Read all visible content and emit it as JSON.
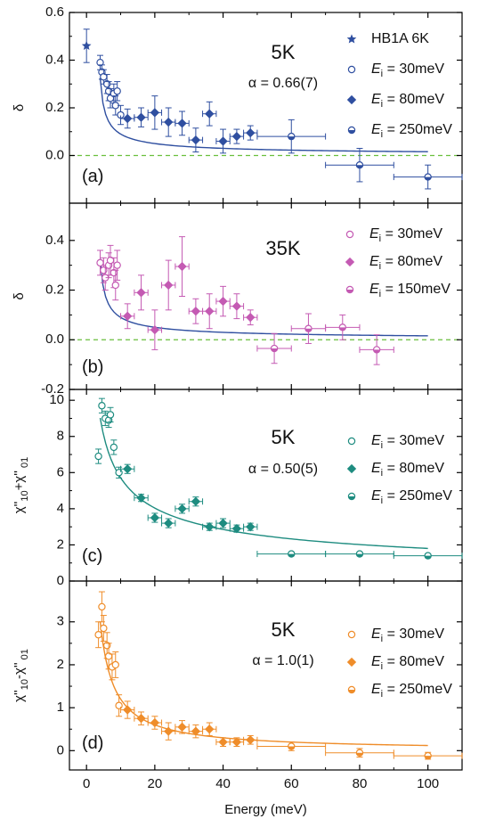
{
  "xaxis": {
    "label": "Energy (meV)",
    "range": [
      -5,
      110
    ],
    "ticks": [
      0,
      20,
      40,
      60,
      80,
      100
    ],
    "tick_labels": [
      "0",
      "20",
      "40",
      "60",
      "80",
      "100"
    ]
  },
  "chart_data": [
    {
      "type": "scatter",
      "panel_label": "(a)",
      "temperature_label": "5K",
      "fit_label": "α = 0.66(7)",
      "ylabel": "δ",
      "ylim": [
        -0.2,
        0.6
      ],
      "yticks": [
        0.0,
        0.2,
        0.4,
        0.6
      ],
      "ytick_labels": [
        "0.0",
        "0.2",
        "0.4",
        "0.6"
      ],
      "colors": {
        "primary": "#2f4fa0",
        "fit": "#2f4fa0",
        "baseline": "#6abf3c"
      },
      "legend": [
        "HB1A 6K",
        "E_i = 30meV",
        "E_i = 80meV",
        "E_i = 250meV"
      ],
      "baseline": 0,
      "fit": {
        "A": 0.325,
        "alpha": 0.66,
        "shift": 3,
        "x_start": 4,
        "x_end": 100
      },
      "series": [
        {
          "name": "HB1A 6K",
          "marker": "star",
          "points": [
            {
              "x": 0,
              "y": 0.46,
              "yerr": 0.07,
              "xerr": 0
            }
          ]
        },
        {
          "name": "E_i = 30meV",
          "marker": "open-circle",
          "points": [
            {
              "x": 4,
              "y": 0.39,
              "yerr": 0.03,
              "xerr": 0.5
            },
            {
              "x": 4.5,
              "y": 0.35,
              "yerr": 0.03,
              "xerr": 0.5
            },
            {
              "x": 5,
              "y": 0.33,
              "yerr": 0.03,
              "xerr": 0.5
            },
            {
              "x": 6,
              "y": 0.3,
              "yerr": 0.04,
              "xerr": 0.5
            },
            {
              "x": 6.5,
              "y": 0.27,
              "yerr": 0.04,
              "xerr": 0.5
            },
            {
              "x": 7,
              "y": 0.24,
              "yerr": 0.04,
              "xerr": 0.5
            },
            {
              "x": 8,
              "y": 0.26,
              "yerr": 0.04,
              "xerr": 0.5
            },
            {
              "x": 8.5,
              "y": 0.21,
              "yerr": 0.04,
              "xerr": 0.5
            },
            {
              "x": 9,
              "y": 0.27,
              "yerr": 0.04,
              "xerr": 0.5
            },
            {
              "x": 10,
              "y": 0.17,
              "yerr": 0.04,
              "xerr": 0.5
            }
          ]
        },
        {
          "name": "E_i = 80meV",
          "marker": "diamond",
          "points": [
            {
              "x": 12,
              "y": 0.155,
              "yerr": 0.04,
              "xerr": 2
            },
            {
              "x": 16,
              "y": 0.16,
              "yerr": 0.04,
              "xerr": 2
            },
            {
              "x": 20,
              "y": 0.18,
              "yerr": 0.07,
              "xerr": 2
            },
            {
              "x": 24,
              "y": 0.14,
              "yerr": 0.06,
              "xerr": 2
            },
            {
              "x": 28,
              "y": 0.135,
              "yerr": 0.05,
              "xerr": 2
            },
            {
              "x": 32,
              "y": 0.065,
              "yerr": 0.05,
              "xerr": 2
            },
            {
              "x": 36,
              "y": 0.175,
              "yerr": 0.05,
              "xerr": 2
            },
            {
              "x": 40,
              "y": 0.06,
              "yerr": 0.05,
              "xerr": 2
            },
            {
              "x": 44,
              "y": 0.08,
              "yerr": 0.03,
              "xerr": 2
            },
            {
              "x": 48,
              "y": 0.095,
              "yerr": 0.03,
              "xerr": 2
            }
          ]
        },
        {
          "name": "E_i = 250meV",
          "marker": "half-circle",
          "points": [
            {
              "x": 60,
              "y": 0.08,
              "yerr": 0.07,
              "xerr": 10
            },
            {
              "x": 80,
              "y": -0.04,
              "yerr": 0.07,
              "xerr": 10
            },
            {
              "x": 100,
              "y": -0.09,
              "yerr": 0.05,
              "xerr": 10
            }
          ]
        }
      ]
    },
    {
      "type": "scatter",
      "panel_label": "(b)",
      "temperature_label": "35K",
      "fit_label": "",
      "ylabel": "δ",
      "ylim": [
        -0.2,
        0.55
      ],
      "yticks": [
        -0.2,
        0.0,
        0.2,
        0.4
      ],
      "ytick_labels": [
        "-0.2",
        "0.0",
        "0.2",
        "0.4"
      ],
      "colors": {
        "primary": "#c45ab3",
        "fit": "#2f4fa0",
        "baseline": "#6abf3c"
      },
      "legend": [
        "E_i = 30meV",
        "E_i = 80meV",
        "E_i = 150meV"
      ],
      "baseline": 0,
      "fit": {
        "A": 0.325,
        "alpha": 0.66,
        "shift": 3,
        "x_start": 4,
        "x_end": 100
      },
      "series": [
        {
          "name": "E_i = 30meV",
          "marker": "open-circle",
          "points": [
            {
              "x": 4,
              "y": 0.31,
              "yerr": 0.05,
              "xerr": 0.5
            },
            {
              "x": 5,
              "y": 0.28,
              "yerr": 0.05,
              "xerr": 0.5
            },
            {
              "x": 5.5,
              "y": 0.25,
              "yerr": 0.05,
              "xerr": 0.5
            },
            {
              "x": 6.5,
              "y": 0.3,
              "yerr": 0.05,
              "xerr": 0.5
            },
            {
              "x": 7,
              "y": 0.32,
              "yerr": 0.06,
              "xerr": 0.5
            },
            {
              "x": 8,
              "y": 0.27,
              "yerr": 0.06,
              "xerr": 0.5
            },
            {
              "x": 8.5,
              "y": 0.22,
              "yerr": 0.06,
              "xerr": 0.5
            },
            {
              "x": 9,
              "y": 0.3,
              "yerr": 0.06,
              "xerr": 0.5
            }
          ]
        },
        {
          "name": "E_i = 80meV",
          "marker": "diamond",
          "points": [
            {
              "x": 12,
              "y": 0.095,
              "yerr": 0.05,
              "xerr": 2
            },
            {
              "x": 16,
              "y": 0.19,
              "yerr": 0.07,
              "xerr": 2
            },
            {
              "x": 20,
              "y": 0.04,
              "yerr": 0.08,
              "xerr": 2
            },
            {
              "x": 24,
              "y": 0.22,
              "yerr": 0.1,
              "xerr": 2
            },
            {
              "x": 28,
              "y": 0.295,
              "yerr": 0.12,
              "xerr": 2
            },
            {
              "x": 32,
              "y": 0.115,
              "yerr": 0.05,
              "xerr": 2
            },
            {
              "x": 36,
              "y": 0.115,
              "yerr": 0.07,
              "xerr": 2
            },
            {
              "x": 40,
              "y": 0.155,
              "yerr": 0.06,
              "xerr": 2
            },
            {
              "x": 44,
              "y": 0.135,
              "yerr": 0.05,
              "xerr": 2
            },
            {
              "x": 48,
              "y": 0.09,
              "yerr": 0.03,
              "xerr": 2
            }
          ]
        },
        {
          "name": "E_i = 150meV",
          "marker": "half-circle",
          "points": [
            {
              "x": 55,
              "y": -0.035,
              "yerr": 0.06,
              "xerr": 5
            },
            {
              "x": 65,
              "y": 0.045,
              "yerr": 0.06,
              "xerr": 5
            },
            {
              "x": 75,
              "y": 0.05,
              "yerr": 0.05,
              "xerr": 5
            },
            {
              "x": 85,
              "y": -0.04,
              "yerr": 0.06,
              "xerr": 5
            }
          ]
        }
      ]
    },
    {
      "type": "scatter",
      "panel_label": "(c)",
      "temperature_label": "5K",
      "fit_label": "α = 0.50(5)",
      "ylabel": "χ''10+χ''01",
      "ylim": [
        0,
        10.6
      ],
      "yticks": [
        0,
        2,
        4,
        6,
        8,
        10
      ],
      "ytick_labels": [
        "0",
        "2",
        "4",
        "6",
        "8",
        "10"
      ],
      "colors": {
        "primary": "#1e8c80",
        "fit": "#1e8c80"
      },
      "legend": [
        "E_i = 30meV",
        "E_i = 80meV",
        "E_i = 250meV"
      ],
      "fit": {
        "A": 18.05,
        "alpha": 0.5,
        "shift": 0,
        "x_start": 4,
        "x_end": 100
      },
      "series": [
        {
          "name": "E_i = 30meV",
          "marker": "open-circle",
          "points": [
            {
              "x": 3.5,
              "y": 6.9,
              "yerr": 0.4,
              "xerr": 0.5
            },
            {
              "x": 4.5,
              "y": 9.7,
              "yerr": 0.4,
              "xerr": 0.5
            },
            {
              "x": 5.5,
              "y": 9.0,
              "yerr": 0.4,
              "xerr": 0.5
            },
            {
              "x": 6.5,
              "y": 8.9,
              "yerr": 0.4,
              "xerr": 0.5
            },
            {
              "x": 7,
              "y": 9.2,
              "yerr": 0.4,
              "xerr": 0.5
            },
            {
              "x": 8,
              "y": 7.4,
              "yerr": 0.4,
              "xerr": 0.5
            },
            {
              "x": 9.5,
              "y": 6.0,
              "yerr": 0.3,
              "xerr": 0.5
            }
          ]
        },
        {
          "name": "E_i = 80meV",
          "marker": "diamond",
          "points": [
            {
              "x": 12,
              "y": 6.2,
              "yerr": 0.25,
              "xerr": 2
            },
            {
              "x": 16,
              "y": 4.6,
              "yerr": 0.2,
              "xerr": 2
            },
            {
              "x": 20,
              "y": 3.5,
              "yerr": 0.25,
              "xerr": 2
            },
            {
              "x": 24,
              "y": 3.2,
              "yerr": 0.25,
              "xerr": 2
            },
            {
              "x": 28,
              "y": 4.0,
              "yerr": 0.25,
              "xerr": 2
            },
            {
              "x": 32,
              "y": 4.4,
              "yerr": 0.25,
              "xerr": 2
            },
            {
              "x": 36,
              "y": 3.0,
              "yerr": 0.2,
              "xerr": 2
            },
            {
              "x": 40,
              "y": 3.2,
              "yerr": 0.25,
              "xerr": 2
            },
            {
              "x": 44,
              "y": 2.9,
              "yerr": 0.2,
              "xerr": 2
            },
            {
              "x": 48,
              "y": 3.0,
              "yerr": 0.2,
              "xerr": 2
            }
          ]
        },
        {
          "name": "E_i = 250meV",
          "marker": "half-circle",
          "points": [
            {
              "x": 60,
              "y": 1.5,
              "yerr": 0.1,
              "xerr": 10
            },
            {
              "x": 80,
              "y": 1.5,
              "yerr": 0.1,
              "xerr": 10
            },
            {
              "x": 100,
              "y": 1.4,
              "yerr": 0.1,
              "xerr": 10
            }
          ]
        }
      ]
    },
    {
      "type": "scatter",
      "panel_label": "(d)",
      "temperature_label": "5K",
      "fit_label": "α = 1.0(1)",
      "ylabel": "χ''10-χ''01",
      "ylim": [
        -0.45,
        3.95
      ],
      "yticks": [
        0,
        1,
        2,
        3
      ],
      "ytick_labels": [
        "0",
        "1",
        "2",
        "3"
      ],
      "colors": {
        "primary": "#ef8d2a",
        "fit": "#ef8d2a"
      },
      "legend": [
        "E_i = 30meV",
        "E_i = 80meV",
        "E_i = 250meV"
      ],
      "fit": {
        "A": 12.0,
        "alpha": 1.0,
        "shift": 0,
        "x_start": 4,
        "x_end": 100
      },
      "series": [
        {
          "name": "E_i = 30meV",
          "marker": "open-circle",
          "points": [
            {
              "x": 3.5,
              "y": 2.7,
              "yerr": 0.3,
              "xerr": 0.5
            },
            {
              "x": 4.5,
              "y": 3.35,
              "yerr": 0.35,
              "xerr": 0.5
            },
            {
              "x": 5,
              "y": 2.85,
              "yerr": 0.3,
              "xerr": 0.5
            },
            {
              "x": 6,
              "y": 2.45,
              "yerr": 0.3,
              "xerr": 0.5
            },
            {
              "x": 6.5,
              "y": 2.2,
              "yerr": 0.3,
              "xerr": 0.5
            },
            {
              "x": 7.5,
              "y": 1.95,
              "yerr": 0.3,
              "xerr": 0.5
            },
            {
              "x": 8.5,
              "y": 2.0,
              "yerr": 0.3,
              "xerr": 0.5
            },
            {
              "x": 9.5,
              "y": 1.05,
              "yerr": 0.25,
              "xerr": 0.5
            }
          ]
        },
        {
          "name": "E_i = 80meV",
          "marker": "diamond",
          "points": [
            {
              "x": 12,
              "y": 0.95,
              "yerr": 0.2,
              "xerr": 2
            },
            {
              "x": 16,
              "y": 0.75,
              "yerr": 0.15,
              "xerr": 2
            },
            {
              "x": 20,
              "y": 0.65,
              "yerr": 0.15,
              "xerr": 2
            },
            {
              "x": 24,
              "y": 0.45,
              "yerr": 0.2,
              "xerr": 2
            },
            {
              "x": 28,
              "y": 0.55,
              "yerr": 0.15,
              "xerr": 2
            },
            {
              "x": 32,
              "y": 0.45,
              "yerr": 0.15,
              "xerr": 2
            },
            {
              "x": 36,
              "y": 0.5,
              "yerr": 0.15,
              "xerr": 2
            },
            {
              "x": 40,
              "y": 0.2,
              "yerr": 0.1,
              "xerr": 2
            },
            {
              "x": 44,
              "y": 0.2,
              "yerr": 0.1,
              "xerr": 2
            },
            {
              "x": 48,
              "y": 0.25,
              "yerr": 0.1,
              "xerr": 2
            }
          ]
        },
        {
          "name": "E_i = 250meV",
          "marker": "half-circle",
          "points": [
            {
              "x": 60,
              "y": 0.1,
              "yerr": 0.1,
              "xerr": 10
            },
            {
              "x": 80,
              "y": -0.05,
              "yerr": 0.1,
              "xerr": 10
            },
            {
              "x": 100,
              "y": -0.12,
              "yerr": 0.08,
              "xerr": 10
            }
          ]
        }
      ]
    }
  ]
}
